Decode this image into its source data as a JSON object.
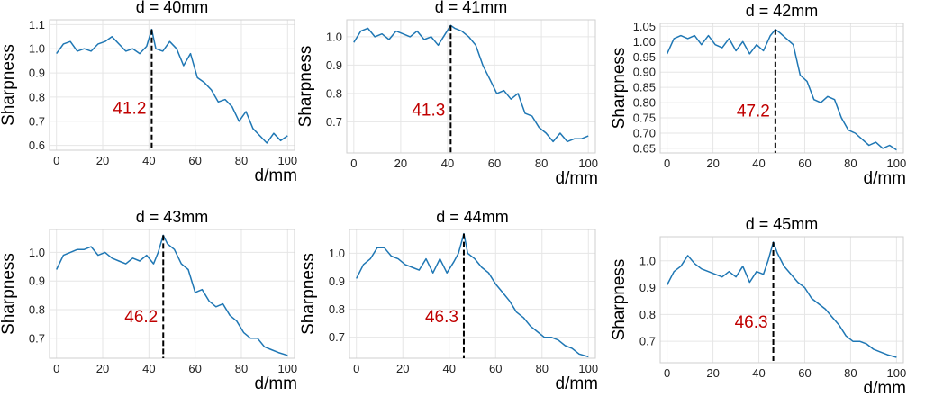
{
  "figure": {
    "line_color": "#1f77b4",
    "annotation_color": "#c00000",
    "grid_color": "#e6e6e6"
  },
  "chart_data": [
    {
      "type": "line",
      "title": "d = 40mm",
      "xlabel": "d/mm",
      "ylabel": "Sharpness",
      "xlim": [
        -3,
        103
      ],
      "ylim": [
        0.58,
        1.12
      ],
      "xticks": [
        0,
        20,
        40,
        60,
        80,
        100
      ],
      "yticks": [
        0.6,
        0.7,
        0.8,
        0.9,
        1.0,
        1.1
      ],
      "ytick_labels": [
        "0.6",
        "0.7",
        "0.8",
        "0.9",
        "1.0",
        "1.1"
      ],
      "grid": true,
      "peak_x": 41.2,
      "peak_label": "41.2",
      "series": [
        {
          "x": [
            0,
            3,
            6,
            9,
            12,
            15,
            18,
            21,
            24,
            27,
            30,
            33,
            36,
            39,
            41.2,
            43,
            46,
            49,
            52,
            55,
            58,
            61,
            64,
            67,
            70,
            73,
            76,
            79,
            82,
            85,
            88,
            91,
            94,
            97,
            100
          ],
          "y": [
            0.98,
            1.02,
            1.03,
            0.99,
            1.0,
            0.99,
            1.02,
            1.03,
            1.05,
            1.02,
            0.99,
            1.0,
            0.98,
            1.01,
            1.08,
            1.0,
            0.99,
            1.03,
            1.0,
            0.93,
            0.98,
            0.88,
            0.86,
            0.83,
            0.78,
            0.79,
            0.76,
            0.7,
            0.74,
            0.67,
            0.64,
            0.61,
            0.65,
            0.62,
            0.64
          ]
        }
      ]
    },
    {
      "type": "line",
      "title": "d = 41mm",
      "xlabel": "d/mm",
      "ylabel": "Sharpness",
      "xlim": [
        -3,
        103
      ],
      "ylim": [
        0.59,
        1.06
      ],
      "xticks": [
        0,
        20,
        40,
        60,
        80,
        100
      ],
      "yticks": [
        0.7,
        0.8,
        0.9,
        1.0
      ],
      "ytick_labels": [
        "0.7",
        "0.8",
        "0.9",
        "1.0"
      ],
      "grid": true,
      "peak_x": 41.3,
      "peak_label": "41.3",
      "series": [
        {
          "x": [
            0,
            3,
            6,
            9,
            12,
            15,
            18,
            21,
            24,
            27,
            30,
            33,
            36,
            39,
            41.3,
            43,
            46,
            49,
            52,
            55,
            58,
            61,
            64,
            67,
            70,
            73,
            76,
            79,
            82,
            85,
            88,
            91,
            94,
            97,
            100
          ],
          "y": [
            0.98,
            1.02,
            1.03,
            1.0,
            1.01,
            0.99,
            1.02,
            1.01,
            1.0,
            1.02,
            0.99,
            1.0,
            0.97,
            1.01,
            1.04,
            1.03,
            1.02,
            1.0,
            0.97,
            0.9,
            0.85,
            0.8,
            0.81,
            0.78,
            0.8,
            0.73,
            0.72,
            0.68,
            0.66,
            0.63,
            0.66,
            0.63,
            0.64,
            0.64,
            0.65
          ]
        }
      ]
    },
    {
      "type": "line",
      "title": "d = 42mm",
      "xlabel": "d/mm",
      "ylabel": "Sharpness",
      "xlim": [
        -3,
        103
      ],
      "ylim": [
        0.635,
        1.06
      ],
      "xticks": [
        0,
        20,
        40,
        60,
        80,
        100
      ],
      "yticks": [
        0.65,
        0.7,
        0.75,
        0.8,
        0.85,
        0.9,
        0.95,
        1.0,
        1.05
      ],
      "ytick_labels": [
        "0.65",
        "0.70",
        "0.75",
        "0.80",
        "0.85",
        "0.90",
        "0.95",
        "1.00",
        "1.05"
      ],
      "grid": true,
      "peak_x": 47.2,
      "peak_label": "47.2",
      "series": [
        {
          "x": [
            0,
            3,
            6,
            9,
            12,
            15,
            18,
            21,
            24,
            27,
            30,
            33,
            36,
            39,
            42,
            45,
            47.2,
            49,
            52,
            55,
            58,
            61,
            64,
            67,
            70,
            73,
            76,
            79,
            82,
            85,
            88,
            91,
            94,
            97,
            100
          ],
          "y": [
            0.96,
            1.01,
            1.02,
            1.01,
            1.02,
            0.99,
            1.02,
            0.99,
            0.98,
            1.01,
            0.97,
            1.0,
            0.96,
            0.99,
            0.97,
            1.02,
            1.04,
            1.03,
            1.01,
            0.99,
            0.89,
            0.87,
            0.81,
            0.8,
            0.82,
            0.81,
            0.75,
            0.71,
            0.7,
            0.68,
            0.66,
            0.67,
            0.65,
            0.66,
            0.645
          ]
        }
      ]
    },
    {
      "type": "line",
      "title": "d = 43mm",
      "xlabel": "d/mm",
      "ylabel": "Sharpness",
      "xlim": [
        -3,
        103
      ],
      "ylim": [
        0.63,
        1.08
      ],
      "xticks": [
        0,
        20,
        40,
        60,
        80,
        100
      ],
      "yticks": [
        0.7,
        0.8,
        0.9,
        1.0
      ],
      "ytick_labels": [
        "0.7",
        "0.8",
        "0.9",
        "1.0"
      ],
      "grid": true,
      "peak_x": 46.2,
      "peak_label": "46.2",
      "series": [
        {
          "x": [
            0,
            3,
            6,
            9,
            12,
            15,
            18,
            21,
            24,
            27,
            30,
            33,
            36,
            39,
            42,
            44,
            46.2,
            48,
            51,
            54,
            57,
            60,
            63,
            66,
            69,
            72,
            75,
            78,
            81,
            84,
            87,
            90,
            93,
            96,
            100
          ],
          "y": [
            0.94,
            0.99,
            1.0,
            1.01,
            1.01,
            1.02,
            0.99,
            1.0,
            0.98,
            0.97,
            0.96,
            0.98,
            0.97,
            0.99,
            0.96,
            1.0,
            1.06,
            1.03,
            1.01,
            0.96,
            0.94,
            0.86,
            0.87,
            0.83,
            0.81,
            0.82,
            0.78,
            0.76,
            0.72,
            0.7,
            0.7,
            0.67,
            0.66,
            0.65,
            0.64
          ]
        }
      ]
    },
    {
      "type": "line",
      "title": "d = 44mm",
      "xlabel": "d/mm",
      "ylabel": "Sharpness",
      "xlim": [
        -3,
        103
      ],
      "ylim": [
        0.625,
        1.085
      ],
      "xticks": [
        0,
        20,
        40,
        60,
        80,
        100
      ],
      "yticks": [
        0.7,
        0.8,
        0.9,
        1.0
      ],
      "ytick_labels": [
        "0.7",
        "0.8",
        "0.9",
        "1.0"
      ],
      "grid": true,
      "peak_x": 46.3,
      "peak_label": "46.3",
      "series": [
        {
          "x": [
            0,
            3,
            6,
            9,
            12,
            15,
            18,
            21,
            24,
            27,
            30,
            33,
            36,
            39,
            42,
            44,
            46.3,
            48,
            51,
            54,
            57,
            60,
            63,
            66,
            69,
            72,
            75,
            78,
            81,
            84,
            87,
            90,
            93,
            96,
            100
          ],
          "y": [
            0.91,
            0.96,
            0.98,
            1.02,
            1.02,
            0.99,
            0.98,
            0.96,
            0.95,
            0.94,
            0.98,
            0.93,
            0.98,
            0.93,
            0.97,
            1.0,
            1.07,
            1.0,
            0.98,
            0.95,
            0.93,
            0.89,
            0.86,
            0.83,
            0.79,
            0.77,
            0.74,
            0.72,
            0.7,
            0.7,
            0.69,
            0.67,
            0.66,
            0.64,
            0.63
          ]
        }
      ]
    },
    {
      "type": "line",
      "title": "d = 45mm",
      "xlabel": "d/mm",
      "ylabel": "Sharpness",
      "xlim": [
        -3,
        103
      ],
      "ylim": [
        0.62,
        1.09
      ],
      "xticks": [
        0,
        20,
        40,
        60,
        80,
        100
      ],
      "yticks": [
        0.7,
        0.8,
        0.9,
        1.0
      ],
      "ytick_labels": [
        "0.7",
        "0.8",
        "0.9",
        "1.0"
      ],
      "grid": true,
      "peak_x": 46.3,
      "peak_label": "46.3",
      "series": [
        {
          "x": [
            0,
            3,
            6,
            9,
            12,
            15,
            18,
            21,
            24,
            27,
            30,
            33,
            36,
            39,
            42,
            44,
            46.3,
            48,
            51,
            54,
            57,
            60,
            63,
            66,
            69,
            72,
            75,
            78,
            81,
            84,
            87,
            90,
            93,
            96,
            100
          ],
          "y": [
            0.91,
            0.96,
            0.98,
            1.02,
            0.99,
            0.97,
            0.96,
            0.95,
            0.94,
            0.96,
            0.94,
            0.98,
            0.92,
            0.96,
            0.95,
            1.0,
            1.07,
            1.03,
            0.98,
            0.95,
            0.92,
            0.9,
            0.86,
            0.84,
            0.82,
            0.79,
            0.76,
            0.72,
            0.7,
            0.7,
            0.69,
            0.67,
            0.66,
            0.65,
            0.64
          ]
        }
      ]
    }
  ]
}
